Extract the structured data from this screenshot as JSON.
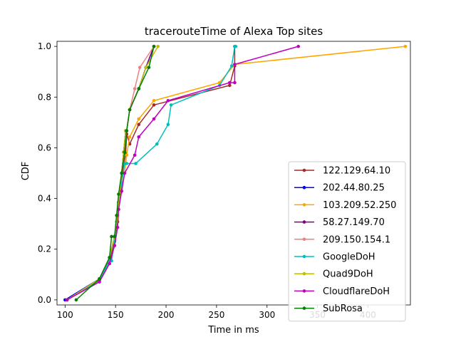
{
  "chart_data": {
    "type": "line",
    "title": "tracerouteTime of Alexa Top sites",
    "xlabel": "Time in ms",
    "ylabel": "CDF",
    "xlim": [
      92,
      442
    ],
    "ylim": [
      -0.02,
      1.02
    ],
    "x_ticks": [
      100,
      150,
      200,
      250,
      300,
      350,
      400
    ],
    "x_tick_labels": [
      "100",
      "150",
      "200",
      "250",
      "300",
      "350",
      "400"
    ],
    "y_ticks": [
      0.0,
      0.2,
      0.4,
      0.6,
      0.8,
      1.0
    ],
    "y_tick_labels": [
      "0.0",
      "0.2",
      "0.4",
      "0.6",
      "0.8",
      "1.0"
    ],
    "grid": false,
    "legend_position": "lower-right",
    "series": [
      {
        "name": "122.129.64.10",
        "color": "#a52a2a",
        "x": [
          102,
          134,
          144,
          149,
          152,
          153,
          155,
          157,
          160,
          161,
          164,
          173,
          188,
          263,
          268,
          268
        ],
        "y": [
          0.0,
          0.077,
          0.154,
          0.231,
          0.308,
          0.385,
          0.423,
          0.5,
          0.577,
          0.654,
          0.615,
          0.692,
          0.769,
          0.846,
          0.923,
          1.0
        ]
      },
      {
        "name": "202.44.80.25",
        "color": "#0000ff",
        "x": [
          100,
          134,
          144,
          149,
          152,
          154,
          156,
          158,
          160,
          161,
          164,
          173,
          180,
          188
        ],
        "y": [
          0.0,
          0.083,
          0.167,
          0.25,
          0.333,
          0.417,
          0.5,
          0.583,
          0.667,
          0.667,
          0.75,
          0.833,
          0.917,
          1.0
        ]
      },
      {
        "name": "103.209.52.250",
        "color": "#ffa500",
        "x": [
          102,
          134,
          144,
          149,
          152,
          153,
          156,
          159,
          161,
          164,
          173,
          188,
          253,
          268,
          437
        ],
        "y": [
          0.0,
          0.071,
          0.143,
          0.214,
          0.286,
          0.357,
          0.429,
          0.5,
          0.571,
          0.643,
          0.714,
          0.786,
          0.857,
          0.929,
          1.0
        ]
      },
      {
        "name": "58.27.149.70",
        "color": "#800080",
        "x": [
          102,
          134,
          144,
          149,
          152,
          154,
          156,
          158,
          160,
          161,
          164,
          173,
          180,
          188
        ],
        "y": [
          0.0,
          0.083,
          0.167,
          0.25,
          0.333,
          0.417,
          0.5,
          0.583,
          0.667,
          0.667,
          0.75,
          0.833,
          0.917,
          1.0
        ]
      },
      {
        "name": "209.150.154.1",
        "color": "#f08080",
        "x": [
          102,
          134,
          144,
          149,
          152,
          154,
          156,
          158,
          160,
          161,
          164,
          169,
          174,
          188
        ],
        "y": [
          0.0,
          0.083,
          0.167,
          0.25,
          0.333,
          0.417,
          0.5,
          0.583,
          0.667,
          0.667,
          0.75,
          0.833,
          0.917,
          1.0
        ]
      },
      {
        "name": "GoogleDoH",
        "color": "#00bfbf",
        "x": [
          102,
          134,
          144,
          146,
          149,
          151,
          153,
          156,
          159,
          161,
          170,
          191,
          202,
          205,
          253,
          265,
          268,
          269
        ],
        "y": [
          0.0,
          0.077,
          0.154,
          0.154,
          0.231,
          0.308,
          0.385,
          0.462,
          0.538,
          0.538,
          0.538,
          0.615,
          0.692,
          0.769,
          0.846,
          0.923,
          1.0,
          1.0
        ]
      },
      {
        "name": "Quad9DoH",
        "color": "#bfbf00",
        "x": [
          102,
          134,
          144,
          149,
          152,
          154,
          156,
          158,
          160,
          161,
          164,
          173,
          180,
          192
        ],
        "y": [
          0.0,
          0.083,
          0.167,
          0.25,
          0.333,
          0.417,
          0.5,
          0.583,
          0.667,
          0.667,
          0.75,
          0.833,
          0.917,
          1.0
        ]
      },
      {
        "name": "CloudflareDoH",
        "color": "#bf00bf",
        "x": [
          102,
          134,
          144,
          149,
          152,
          153,
          156,
          159,
          169,
          173,
          188,
          202,
          263,
          268,
          268,
          331
        ],
        "y": [
          0.0,
          0.071,
          0.143,
          0.214,
          0.286,
          0.357,
          0.429,
          0.5,
          0.571,
          0.643,
          0.714,
          0.786,
          0.857,
          0.857,
          0.929,
          1.0
        ]
      },
      {
        "name": "SubRosa",
        "color": "#008000",
        "x": [
          111,
          134,
          144,
          146,
          149,
          151,
          153,
          156,
          159,
          161,
          164,
          173,
          183,
          188
        ],
        "y": [
          0.0,
          0.083,
          0.167,
          0.25,
          0.25,
          0.333,
          0.417,
          0.5,
          0.583,
          0.667,
          0.75,
          0.833,
          0.917,
          1.0
        ]
      }
    ]
  }
}
